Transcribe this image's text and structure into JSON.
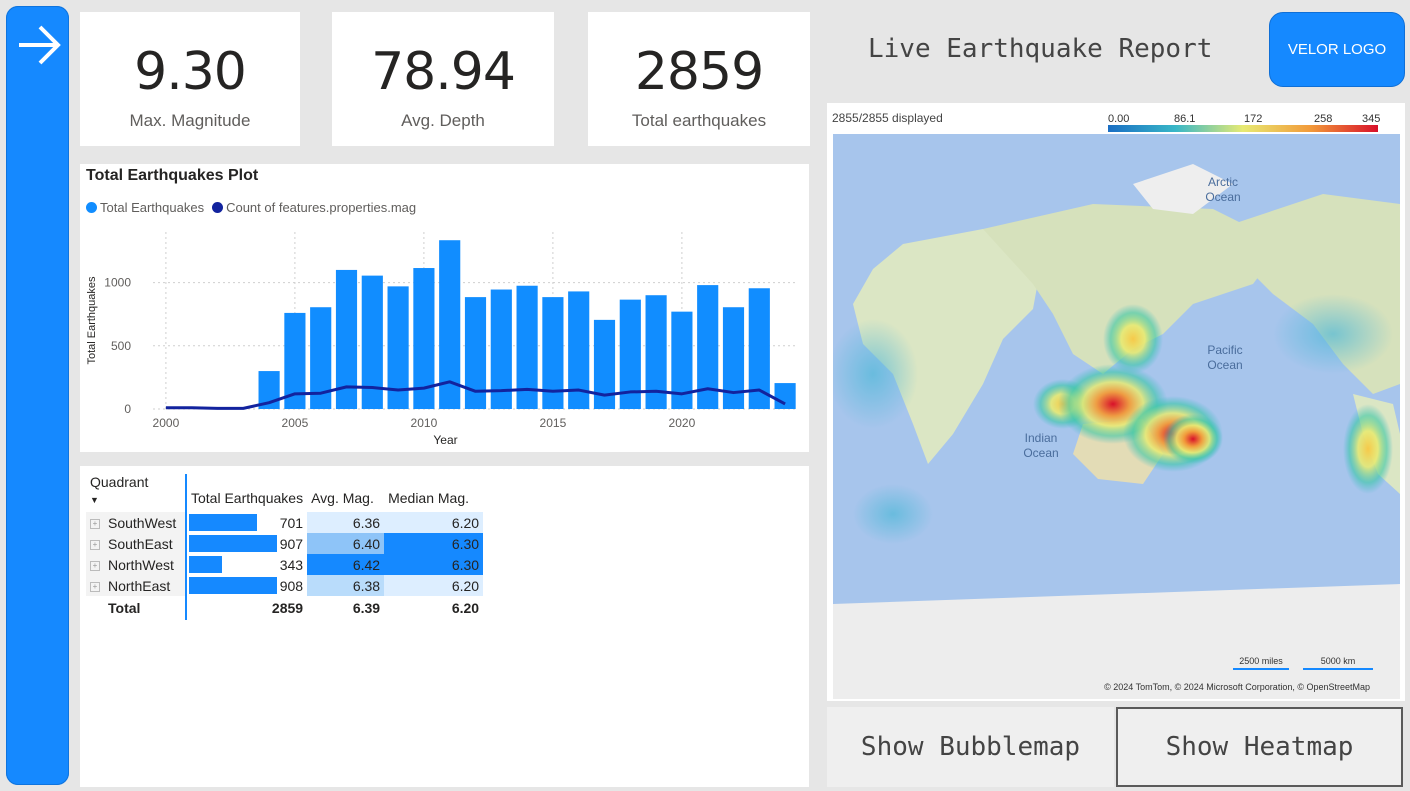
{
  "kpis": {
    "max_magnitude": {
      "value": "9.30",
      "label": "Max. Magnitude"
    },
    "avg_depth": {
      "value": "78.94",
      "label": "Avg. Depth"
    },
    "total": {
      "value": "2859",
      "label": "Total earthquakes"
    }
  },
  "header": {
    "title": "Live Earthquake Report",
    "logo_label": "VELOR LOGO"
  },
  "nav": {
    "icon": "arrow-right-icon"
  },
  "chart": {
    "title": "Total Earthquakes Plot",
    "legend": [
      {
        "label": "Total Earthquakes",
        "color": "#118dff"
      },
      {
        "label": "Count of features.properties.mag",
        "color": "#12239e"
      }
    ]
  },
  "chart_data": {
    "type": "bar",
    "title": "Total Earthquakes Plot",
    "xlabel": "Year",
    "ylabel": "Total Earthquakes",
    "x_ticks": [
      "2000",
      "2005",
      "2010",
      "2015",
      "2020"
    ],
    "y_ticks": [
      "0",
      "500",
      "1000"
    ],
    "ylim": [
      0,
      1400
    ],
    "xlim": [
      1999.5,
      2024.5
    ],
    "grid": true,
    "legend_position": "top-left",
    "categories": [
      2000,
      2001,
      2002,
      2003,
      2004,
      2005,
      2006,
      2007,
      2008,
      2009,
      2010,
      2011,
      2012,
      2013,
      2014,
      2015,
      2016,
      2017,
      2018,
      2019,
      2020,
      2021,
      2022,
      2023,
      2024
    ],
    "series": [
      {
        "name": "Total Earthquakes",
        "type": "bar",
        "color": "#118dff",
        "values": [
          0,
          0,
          0,
          0,
          300,
          760,
          805,
          1100,
          1055,
          970,
          1115,
          1335,
          885,
          945,
          975,
          885,
          930,
          705,
          865,
          900,
          770,
          980,
          805,
          955,
          205
        ]
      },
      {
        "name": "Count of features.properties.mag",
        "type": "line",
        "color": "#12239e",
        "values": [
          10,
          10,
          5,
          5,
          50,
          120,
          125,
          175,
          170,
          150,
          165,
          215,
          140,
          145,
          155,
          140,
          150,
          110,
          135,
          140,
          120,
          160,
          130,
          150,
          40
        ]
      }
    ]
  },
  "matrix": {
    "headers": [
      "Quadrant",
      "Total Earthquakes",
      "Avg. Mag.",
      "Median Mag."
    ],
    "rows": [
      {
        "quadrant": "SouthWest",
        "total": "701",
        "avg": "6.36",
        "median": "6.20",
        "total_frac": 0.772,
        "avg_shade": "#ddeeff",
        "median_shade": "#ddeeff"
      },
      {
        "quadrant": "SouthEast",
        "total": "907",
        "avg": "6.40",
        "median": "6.30",
        "total_frac": 0.999,
        "avg_shade": "#8ec4f8",
        "median_shade": "#1589ff"
      },
      {
        "quadrant": "NorthWest",
        "total": "343",
        "avg": "6.42",
        "median": "6.30",
        "total_frac": 0.378,
        "avg_shade": "#1589ff",
        "median_shade": "#1589ff"
      },
      {
        "quadrant": "NorthEast",
        "total": "908",
        "avg": "6.38",
        "median": "6.20",
        "total_frac": 1.0,
        "avg_shade": "#b9dcfb",
        "median_shade": "#ddeeff"
      }
    ],
    "total": {
      "label": "Total",
      "total": "2859",
      "avg": "6.39",
      "median": "6.20"
    }
  },
  "map": {
    "displayed": "2855/2855 displayed",
    "scale_ticks": [
      "0.00",
      "86.1",
      "172",
      "258",
      "345"
    ],
    "labels": {
      "arctic": "Arctic\nOcean",
      "pacific": "Pacific\nOcean",
      "indian": "Indian\nOcean"
    },
    "scale_miles": "2500 miles",
    "scale_km": "5000 km",
    "attribution": "© 2024 TomTom, © 2024 Microsoft Corporation, © OpenStreetMap"
  },
  "buttons": {
    "bubblemap": "Show Bubblemap",
    "heatmap": "Show Heatmap"
  }
}
